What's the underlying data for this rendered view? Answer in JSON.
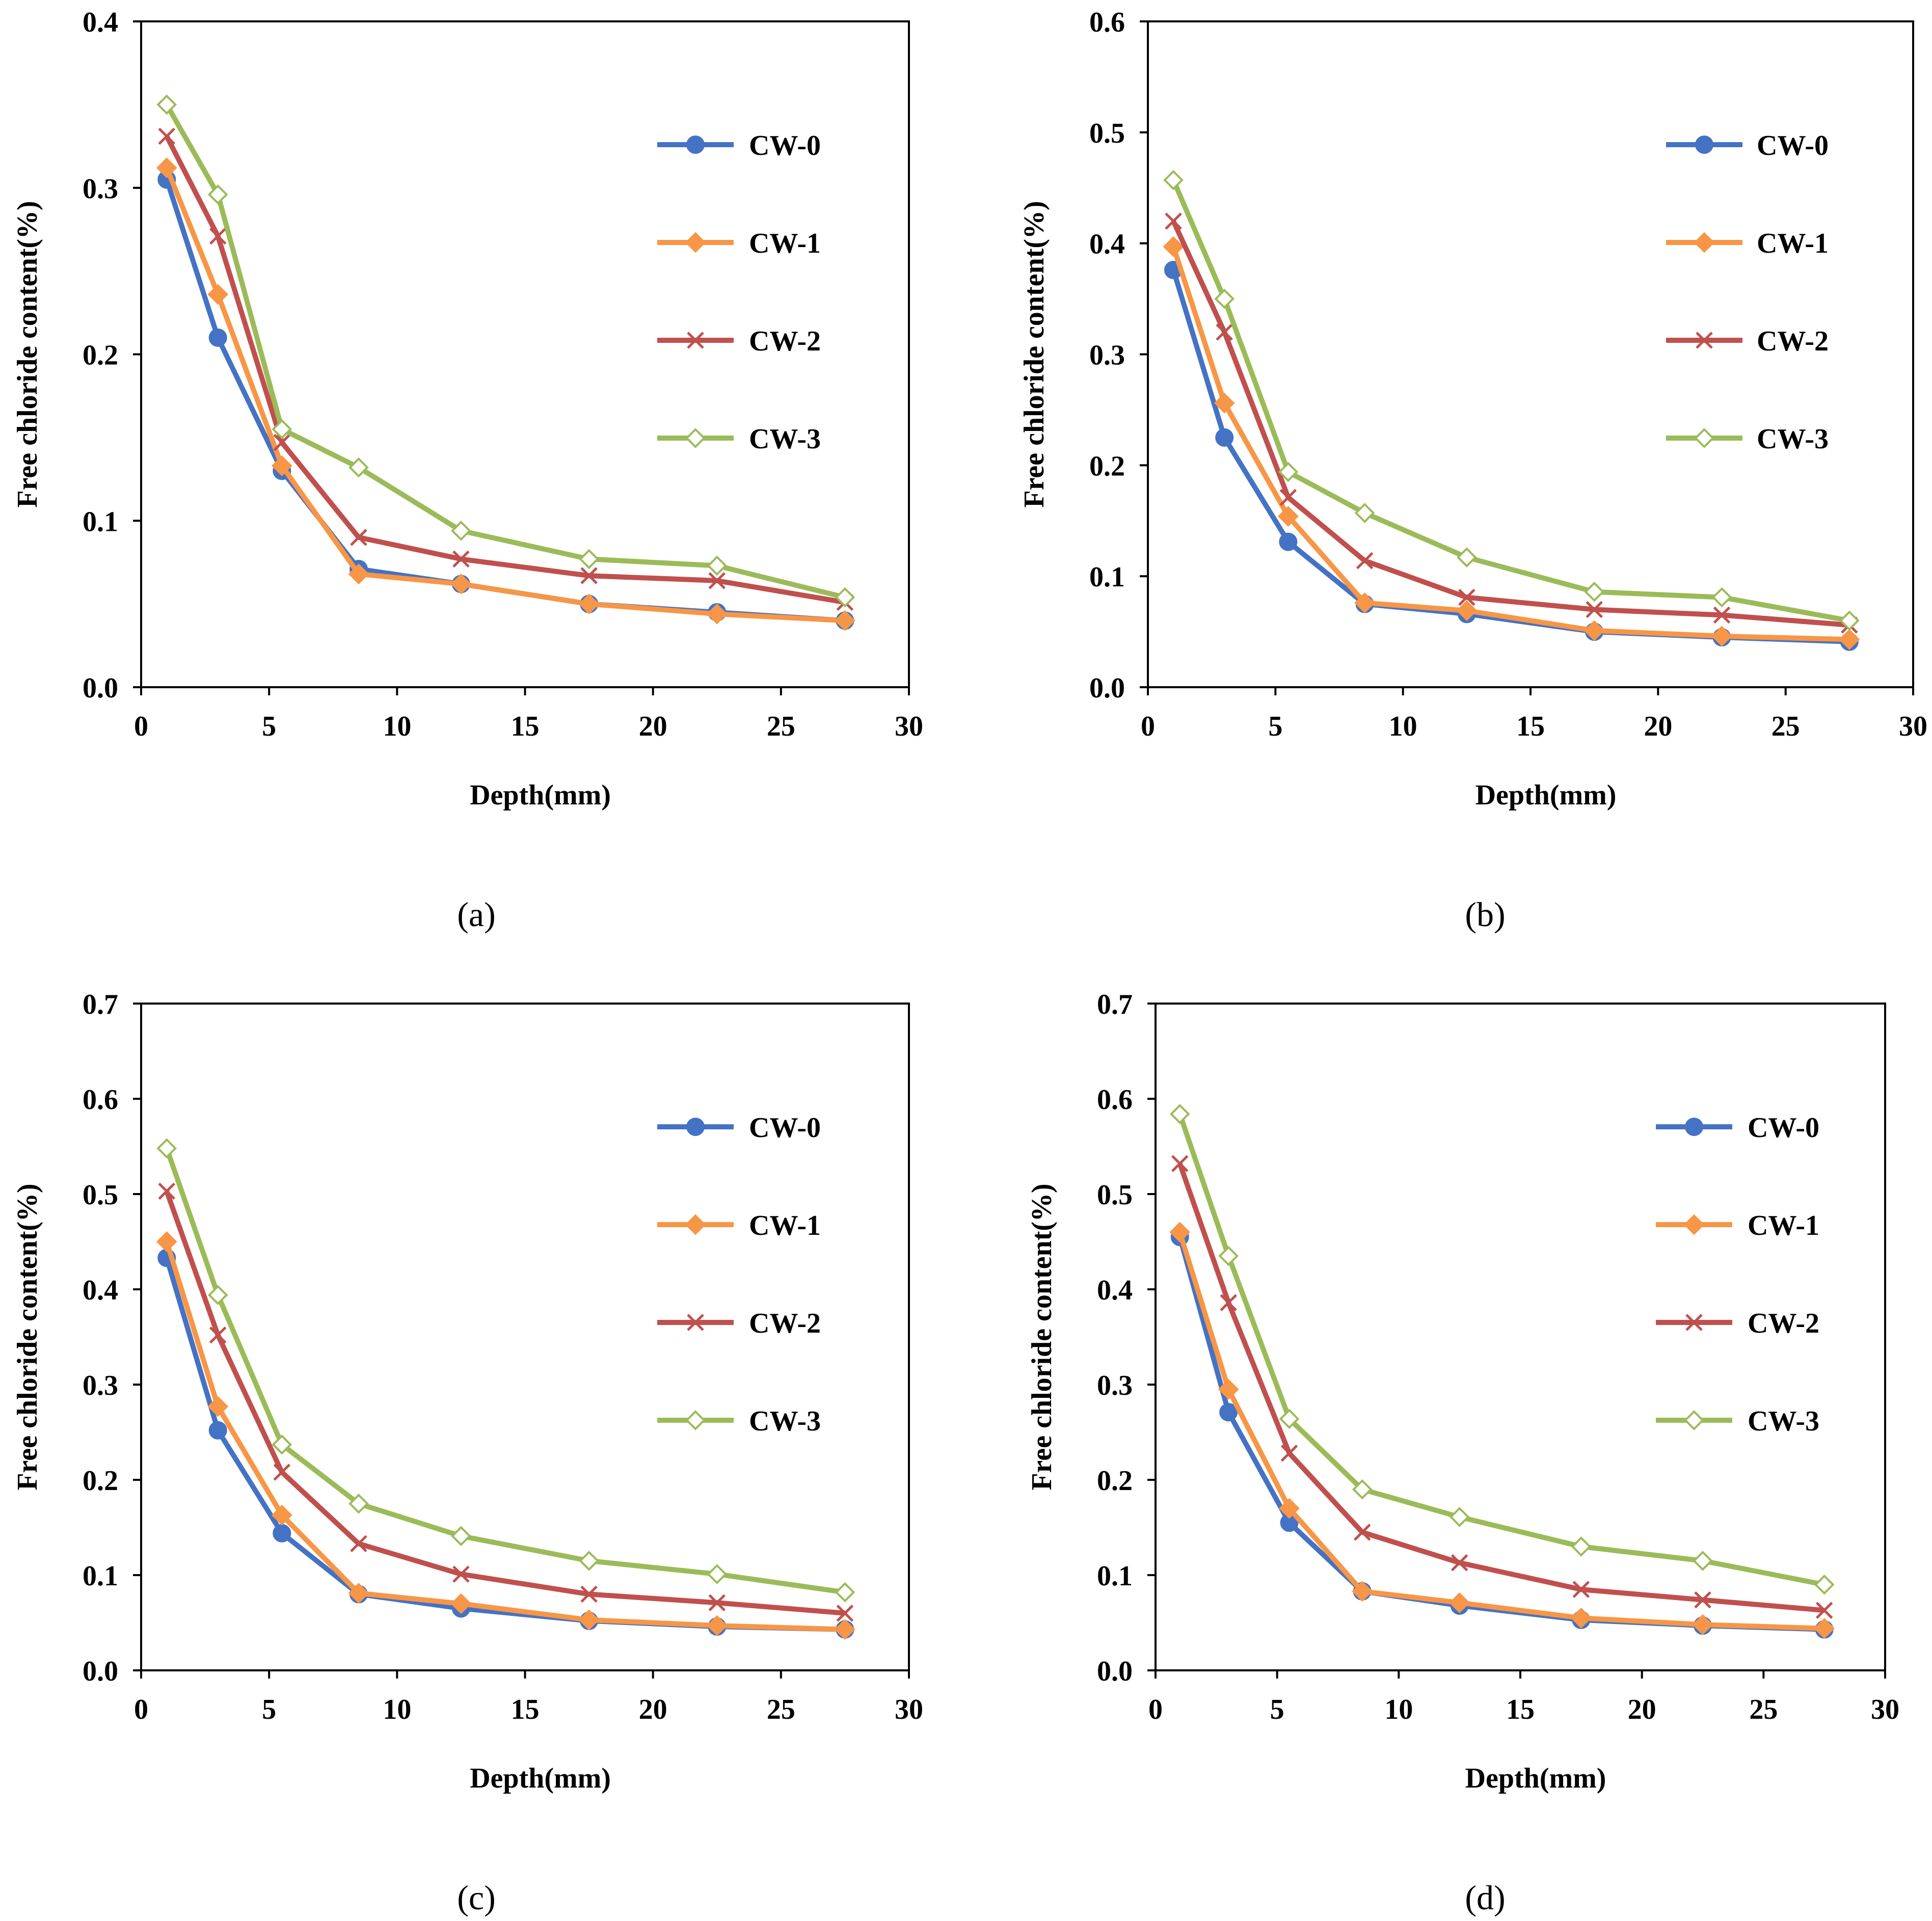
{
  "colors": {
    "CW-0": "#4472C4",
    "CW-1": "#F79646",
    "CW-2": "#C0504D",
    "CW-3": "#9BBB59"
  },
  "markers": {
    "CW-0": "circle",
    "CW-1": "diamond-filled",
    "CW-2": "x",
    "CW-3": "diamond-open"
  },
  "chart_data": [
    {
      "type": "line",
      "panel_label": "(a)",
      "xlabel": "Depth(mm)",
      "ylabel": "Free chloride content(%)",
      "xlim": [
        0,
        30
      ],
      "ylim": [
        0,
        0.4
      ],
      "xticks": [
        0,
        5,
        10,
        15,
        20,
        25,
        30
      ],
      "xtick_labels": [
        "0",
        "5",
        "10",
        "15",
        "20",
        "25",
        "30"
      ],
      "yticks": [
        0,
        0.1,
        0.2,
        0.3,
        0.4
      ],
      "ytick_labels": [
        "0.0",
        "0.1",
        "0.2",
        "0.3",
        "0.4"
      ],
      "legend_position": "top-right",
      "x": [
        1.0,
        3.0,
        5.5,
        8.5,
        12.5,
        17.5,
        22.5,
        27.5
      ],
      "series": [
        {
          "name": "CW-0",
          "values": [
            0.305,
            0.21,
            0.13,
            0.071,
            0.062,
            0.05,
            0.045,
            0.04
          ]
        },
        {
          "name": "CW-1",
          "values": [
            0.312,
            0.236,
            0.133,
            0.068,
            0.062,
            0.05,
            0.044,
            0.04
          ]
        },
        {
          "name": "CW-2",
          "values": [
            0.331,
            0.271,
            0.147,
            0.09,
            0.077,
            0.067,
            0.064,
            0.051
          ]
        },
        {
          "name": "CW-3",
          "values": [
            0.35,
            0.296,
            0.155,
            0.132,
            0.094,
            0.077,
            0.073,
            0.054
          ]
        }
      ]
    },
    {
      "type": "line",
      "panel_label": "(b)",
      "xlabel": "Depth(mm)",
      "ylabel": "Free chloride content(%)",
      "xlim": [
        0,
        30
      ],
      "ylim": [
        0,
        0.6
      ],
      "xticks": [
        0,
        5,
        10,
        15,
        20,
        25,
        30
      ],
      "xtick_labels": [
        "0",
        "5",
        "10",
        "15",
        "20",
        "25",
        "30"
      ],
      "yticks": [
        0,
        0.1,
        0.2,
        0.3,
        0.4,
        0.5,
        0.6
      ],
      "ytick_labels": [
        "0.0",
        "0.1",
        "0.2",
        "0.3",
        "0.4",
        "0.5",
        "0.6"
      ],
      "legend_position": "top-right",
      "x": [
        1.0,
        3.0,
        5.5,
        8.5,
        12.5,
        17.5,
        22.5,
        27.5
      ],
      "series": [
        {
          "name": "CW-0",
          "values": [
            0.376,
            0.225,
            0.131,
            0.075,
            0.066,
            0.05,
            0.045,
            0.041
          ]
        },
        {
          "name": "CW-1",
          "values": [
            0.397,
            0.256,
            0.154,
            0.076,
            0.069,
            0.051,
            0.046,
            0.043
          ]
        },
        {
          "name": "CW-2",
          "values": [
            0.42,
            0.32,
            0.171,
            0.114,
            0.081,
            0.07,
            0.065,
            0.056
          ]
        },
        {
          "name": "CW-3",
          "values": [
            0.457,
            0.35,
            0.194,
            0.157,
            0.117,
            0.086,
            0.081,
            0.06
          ]
        }
      ]
    },
    {
      "type": "line",
      "panel_label": "(c)",
      "xlabel": "Depth(mm)",
      "ylabel": "Free chloride content(%)",
      "xlim": [
        0,
        30
      ],
      "ylim": [
        0,
        0.7
      ],
      "xticks": [
        0,
        5,
        10,
        15,
        20,
        25,
        30
      ],
      "xtick_labels": [
        "0",
        "5",
        "10",
        "15",
        "20",
        "25",
        "30"
      ],
      "yticks": [
        0,
        0.1,
        0.2,
        0.3,
        0.4,
        0.5,
        0.6,
        0.7
      ],
      "ytick_labels": [
        "0.0",
        "0.1",
        "0.2",
        "0.3",
        "0.4",
        "0.5",
        "0.6",
        "0.7"
      ],
      "legend_position": "top-right",
      "x": [
        1.0,
        3.0,
        5.5,
        8.5,
        12.5,
        17.5,
        22.5,
        27.5
      ],
      "series": [
        {
          "name": "CW-0",
          "values": [
            0.433,
            0.252,
            0.144,
            0.08,
            0.065,
            0.052,
            0.046,
            0.043
          ]
        },
        {
          "name": "CW-1",
          "values": [
            0.45,
            0.277,
            0.163,
            0.081,
            0.07,
            0.053,
            0.047,
            0.043
          ]
        },
        {
          "name": "CW-2",
          "values": [
            0.503,
            0.352,
            0.208,
            0.133,
            0.101,
            0.08,
            0.071,
            0.06
          ]
        },
        {
          "name": "CW-3",
          "values": [
            0.548,
            0.394,
            0.237,
            0.175,
            0.141,
            0.115,
            0.101,
            0.082
          ]
        }
      ]
    },
    {
      "type": "line",
      "panel_label": "(d)",
      "xlabel": "Depth(mm)",
      "ylabel": "Free chloride content(%)",
      "xlim": [
        0,
        30
      ],
      "ylim": [
        0,
        0.7
      ],
      "xticks": [
        0,
        5,
        10,
        15,
        20,
        25,
        30
      ],
      "xtick_labels": [
        "0",
        "5",
        "10",
        "15",
        "20",
        "25",
        "30"
      ],
      "yticks": [
        0,
        0.1,
        0.2,
        0.3,
        0.4,
        0.5,
        0.6,
        0.7
      ],
      "ytick_labels": [
        "0.0",
        "0.1",
        "0.2",
        "0.3",
        "0.4",
        "0.5",
        "0.6",
        "0.7"
      ],
      "legend_position": "top-right",
      "x": [
        1.0,
        3.0,
        5.5,
        8.5,
        12.5,
        17.5,
        22.5,
        27.5
      ],
      "series": [
        {
          "name": "CW-0",
          "values": [
            0.455,
            0.271,
            0.155,
            0.083,
            0.068,
            0.053,
            0.047,
            0.043
          ]
        },
        {
          "name": "CW-1",
          "values": [
            0.46,
            0.295,
            0.17,
            0.083,
            0.071,
            0.055,
            0.048,
            0.044
          ]
        },
        {
          "name": "CW-2",
          "values": [
            0.532,
            0.386,
            0.228,
            0.145,
            0.113,
            0.085,
            0.074,
            0.063
          ]
        },
        {
          "name": "CW-3",
          "values": [
            0.584,
            0.435,
            0.264,
            0.19,
            0.161,
            0.13,
            0.115,
            0.09
          ]
        }
      ]
    }
  ]
}
